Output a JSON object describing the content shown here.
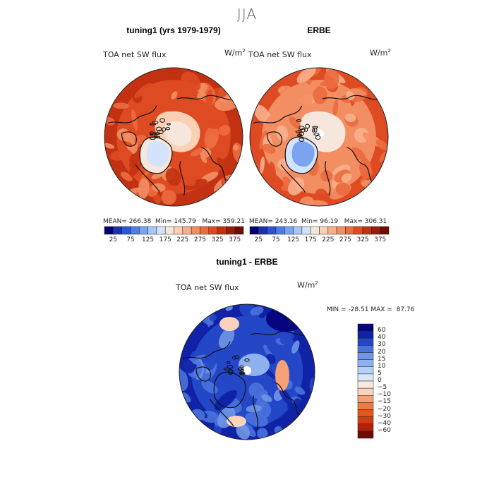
{
  "page": {
    "title": "JJA"
  },
  "panels": [
    {
      "title": "tuning1 (yrs 1979-1979)",
      "variable": "TOA net SW flux",
      "units_base": "W/m",
      "units_exp": "2",
      "stats": {
        "mean_label": "MEAN=",
        "mean": "266.38",
        "min_label": "Min=",
        "min": "145.79",
        "max_label": "Max=",
        "max": "359.21"
      }
    },
    {
      "title": "ERBE",
      "variable": "TOA net SW flux",
      "units_base": "W/m",
      "units_exp": "2",
      "stats": {
        "mean_label": "MEAN=",
        "mean": "243.16",
        "min_label": "Min=",
        "min": "96.19",
        "max_label": "Max=",
        "max": "306.31"
      }
    },
    {
      "title": "tuning1 - ERBE",
      "variable": "TOA net SW flux",
      "units_base": "W/m",
      "units_exp": "2",
      "stats": {
        "min_label": "MIN =",
        "min": "-28.51",
        "max_label": "MAX =",
        "max": "87.76"
      }
    }
  ],
  "chart_data": [
    {
      "type": "heatmap",
      "title": "tuning1 (yrs 1979-1979)",
      "projection": "north polar stereographic",
      "variable": "TOA net SW flux",
      "units": "W/m^2",
      "mean": 266.38,
      "min": 145.79,
      "max": 359.21,
      "colorbar_levels": [
        25,
        50,
        75,
        100,
        125,
        150,
        175,
        200,
        225,
        250,
        275,
        300,
        325,
        350,
        375
      ],
      "colorbar_tick_labels": [
        "25",
        "75",
        "125",
        "175",
        "225",
        "275",
        "325",
        "375"
      ],
      "colorbar_colors": [
        "#04026e",
        "#1b2fb0",
        "#2a55d8",
        "#4a7ee8",
        "#7aa3f0",
        "#a9c6f7",
        "#d2e3fb",
        "#f6e6dc",
        "#fbd0b5",
        "#f8b08c",
        "#f38e63",
        "#eb6c3f",
        "#de4a22",
        "#c23212",
        "#9a1c08",
        "#6e0c02"
      ],
      "regions": [
        {
          "name": "background",
          "value": 300
        },
        {
          "name": "outer-ring",
          "value": 330
        },
        {
          "name": "arctic-ocean",
          "value": 210
        },
        {
          "name": "greenland",
          "value": 150
        }
      ]
    },
    {
      "type": "heatmap",
      "title": "ERBE",
      "projection": "north polar stereographic",
      "variable": "TOA net SW flux",
      "units": "W/m^2",
      "mean": 243.16,
      "min": 96.19,
      "max": 306.31,
      "colorbar_levels": [
        25,
        50,
        75,
        100,
        125,
        150,
        175,
        200,
        225,
        250,
        275,
        300,
        325,
        350,
        375
      ],
      "colorbar_tick_labels": [
        "25",
        "75",
        "125",
        "175",
        "225",
        "275",
        "325",
        "375"
      ],
      "colorbar_colors": [
        "#04026e",
        "#1b2fb0",
        "#2a55d8",
        "#4a7ee8",
        "#7aa3f0",
        "#a9c6f7",
        "#d2e3fb",
        "#f6e6dc",
        "#fbd0b5",
        "#f8b08c",
        "#f38e63",
        "#eb6c3f",
        "#de4a22",
        "#c23212",
        "#9a1c08",
        "#6e0c02"
      ],
      "regions": [
        {
          "name": "background",
          "value": 270
        },
        {
          "name": "outer-ring",
          "value": 300
        },
        {
          "name": "arctic-ocean",
          "value": 190
        },
        {
          "name": "greenland",
          "value": 110
        }
      ]
    },
    {
      "type": "heatmap",
      "title": "tuning1 - ERBE",
      "projection": "north polar stereographic",
      "variable": "TOA net SW flux",
      "units": "W/m^2",
      "min": -28.51,
      "max": 87.76,
      "colorbar_levels": [
        -60,
        -40,
        -30,
        -20,
        -15,
        -10,
        -5,
        0,
        5,
        10,
        15,
        20,
        30,
        40,
        60
      ],
      "colorbar_tick_labels": [
        "60",
        "40",
        "30",
        "20",
        "15",
        "10",
        "5",
        "0",
        "−5",
        "−10",
        "−15",
        "−20",
        "−30",
        "−40",
        "−60"
      ],
      "colorbar_colors": [
        "#6e0c02",
        "#b1200a",
        "#d23a14",
        "#e5561d",
        "#f07a3f",
        "#f5a076",
        "#fbd3bd",
        "#fbe9de",
        "#d9e6fb",
        "#b6cff5",
        "#8fb2ee",
        "#6f96e6",
        "#4a72dc",
        "#2347c6",
        "#1023a6",
        "#050580"
      ],
      "regions": [
        {
          "name": "background",
          "value": 30
        },
        {
          "name": "north-atlantic",
          "value": 55
        },
        {
          "name": "arctic-negative",
          "value": -8
        },
        {
          "name": "greenland",
          "value": 20
        }
      ]
    }
  ]
}
